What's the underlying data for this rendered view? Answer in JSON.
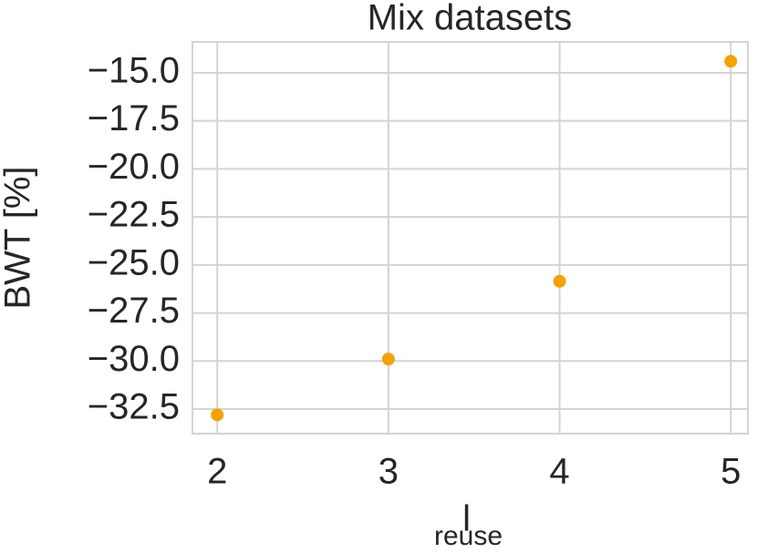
{
  "chart_data": {
    "type": "scatter",
    "title": "Mix datasets",
    "x_label": "l",
    "x_label_subscript": "reuse",
    "y_label": "BWT [%]",
    "x": [
      2,
      3,
      4,
      5
    ],
    "values": [
      -32.8,
      -29.9,
      -25.85,
      -14.4
    ],
    "color": "#f5a100",
    "xlim": [
      1.855,
      5.1
    ],
    "xticks": [
      2,
      3,
      4,
      5
    ],
    "ylim": [
      -33.78,
      -13.39
    ],
    "yticks": [
      {
        "value": -32.5,
        "label": "−32.5"
      },
      {
        "value": -30,
        "label": "−30.0"
      },
      {
        "value": -27.5,
        "label": "−27.5"
      },
      {
        "value": -25,
        "label": "−25.0"
      },
      {
        "value": -22.5,
        "label": "−22.5"
      },
      {
        "value": -20,
        "label": "−20.0"
      },
      {
        "value": -17.5,
        "label": "−17.5"
      },
      {
        "value": -15,
        "label": "−15.0"
      }
    ],
    "grid": true
  }
}
